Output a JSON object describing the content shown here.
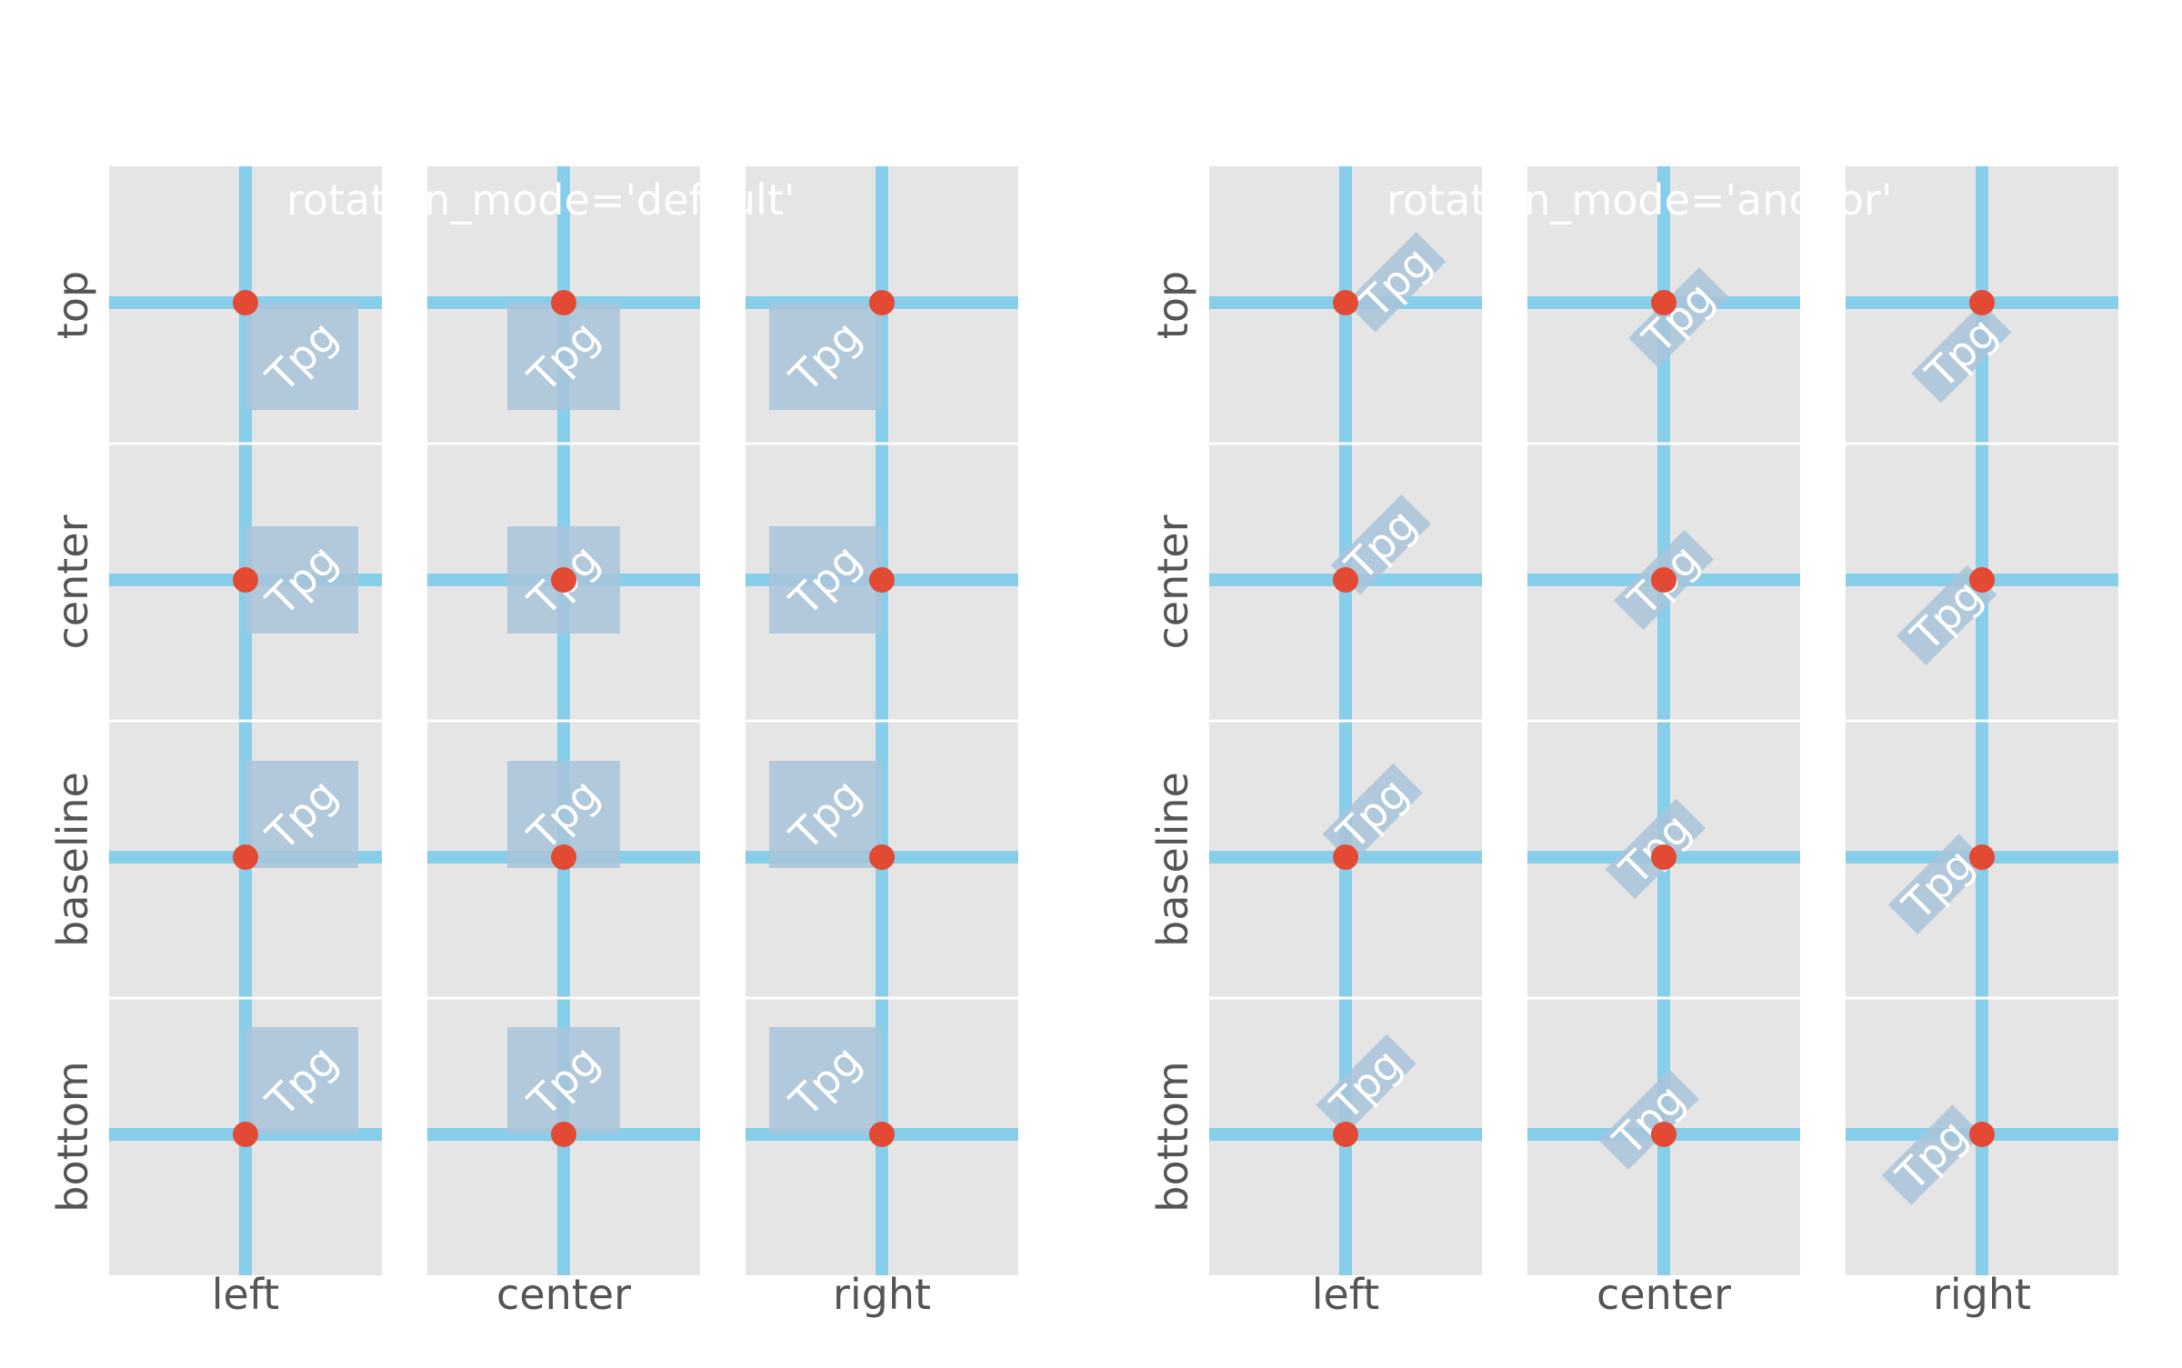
{
  "chart_data": [
    {
      "type": "other",
      "title": "rotation_mode='default'",
      "rotation_mode": "default",
      "rotation_deg": 45,
      "sample_text": "Tpg",
      "xlabels": [
        "left",
        "center",
        "right"
      ],
      "ylabels": [
        "top",
        "center",
        "baseline",
        "bottom"
      ],
      "grid": true
    },
    {
      "type": "other",
      "title": "rotation_mode='anchor'",
      "rotation_mode": "anchor",
      "rotation_deg": 45,
      "sample_text": "Tpg",
      "xlabels": [
        "left",
        "center",
        "right"
      ],
      "ylabels": [
        "top",
        "center",
        "baseline",
        "bottom"
      ],
      "grid": true
    }
  ],
  "colors": {
    "axes_bg": "#e5e5e5",
    "guide_line": "#87ceeb",
    "anchor_point": "#e24a33",
    "text_box": "#a9c4d9",
    "label_text": "#555555",
    "sample_text": "#ffffff"
  }
}
